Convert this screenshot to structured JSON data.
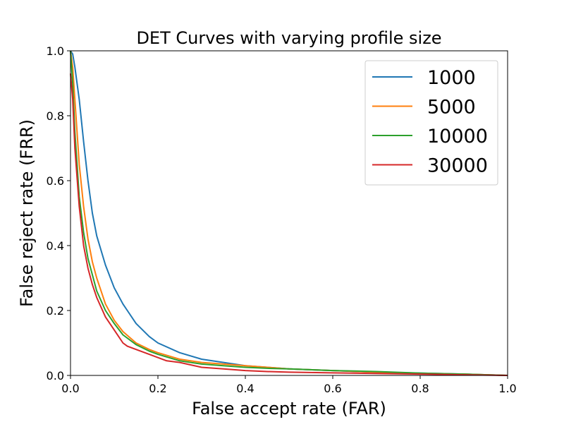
{
  "chart_data": {
    "type": "line",
    "title": "DET Curves with varying profile size",
    "xlabel": "False accept rate (FAR)",
    "ylabel": "False reject rate (FRR)",
    "xlim": [
      0.0,
      1.0
    ],
    "ylim": [
      0.0,
      1.0
    ],
    "xticks": [
      "0.0",
      "0.2",
      "0.4",
      "0.6",
      "0.8",
      "1.0"
    ],
    "yticks": [
      "0.0",
      "0.2",
      "0.4",
      "0.6",
      "0.8",
      "1.0"
    ],
    "grid": false,
    "legend_position": "top-right",
    "series": [
      {
        "name": "1000",
        "color": "#1f77b4",
        "x": [
          0.0,
          0.005,
          0.01,
          0.02,
          0.03,
          0.04,
          0.05,
          0.06,
          0.08,
          0.1,
          0.12,
          0.13,
          0.15,
          0.18,
          0.2,
          0.25,
          0.3,
          0.35,
          0.4,
          0.45,
          0.5,
          0.6,
          0.7,
          0.8,
          0.9,
          1.0
        ],
        "y": [
          1.0,
          0.99,
          0.95,
          0.85,
          0.72,
          0.6,
          0.5,
          0.43,
          0.34,
          0.27,
          0.22,
          0.2,
          0.16,
          0.12,
          0.1,
          0.07,
          0.05,
          0.04,
          0.03,
          0.025,
          0.02,
          0.015,
          0.01,
          0.007,
          0.004,
          0.0
        ]
      },
      {
        "name": "5000",
        "color": "#ff7f0e",
        "x": [
          0.0,
          0.005,
          0.01,
          0.02,
          0.03,
          0.04,
          0.05,
          0.06,
          0.08,
          0.1,
          0.12,
          0.15,
          0.18,
          0.2,
          0.25,
          0.3,
          0.35,
          0.4,
          0.45,
          0.5,
          0.6,
          0.7,
          0.8,
          0.9,
          1.0
        ],
        "y": [
          1.0,
          0.95,
          0.85,
          0.65,
          0.52,
          0.42,
          0.35,
          0.3,
          0.22,
          0.17,
          0.135,
          0.1,
          0.08,
          0.07,
          0.05,
          0.04,
          0.035,
          0.03,
          0.025,
          0.02,
          0.015,
          0.01,
          0.006,
          0.004,
          0.0
        ]
      },
      {
        "name": "10000",
        "color": "#2ca02c",
        "x": [
          0.0,
          0.005,
          0.01,
          0.02,
          0.03,
          0.04,
          0.05,
          0.06,
          0.08,
          0.1,
          0.12,
          0.15,
          0.18,
          0.2,
          0.25,
          0.3,
          0.35,
          0.4,
          0.45,
          0.5,
          0.6,
          0.7,
          0.8,
          0.9,
          1.0
        ],
        "y": [
          1.0,
          0.9,
          0.75,
          0.55,
          0.44,
          0.36,
          0.31,
          0.26,
          0.2,
          0.16,
          0.125,
          0.095,
          0.075,
          0.065,
          0.045,
          0.035,
          0.03,
          0.025,
          0.022,
          0.02,
          0.015,
          0.012,
          0.007,
          0.004,
          0.0
        ]
      },
      {
        "name": "30000",
        "color": "#d62728",
        "x": [
          0.0,
          0.005,
          0.01,
          0.02,
          0.03,
          0.04,
          0.05,
          0.06,
          0.08,
          0.1,
          0.12,
          0.13,
          0.15,
          0.18,
          0.2,
          0.22,
          0.25,
          0.3,
          0.35,
          0.4,
          0.45,
          0.5,
          0.6,
          0.7,
          0.8,
          0.9,
          1.0
        ],
        "y": [
          0.93,
          0.85,
          0.7,
          0.52,
          0.4,
          0.33,
          0.28,
          0.24,
          0.18,
          0.14,
          0.1,
          0.09,
          0.08,
          0.065,
          0.055,
          0.045,
          0.04,
          0.025,
          0.02,
          0.015,
          0.012,
          0.01,
          0.008,
          0.006,
          0.004,
          0.002,
          0.0
        ]
      }
    ]
  }
}
